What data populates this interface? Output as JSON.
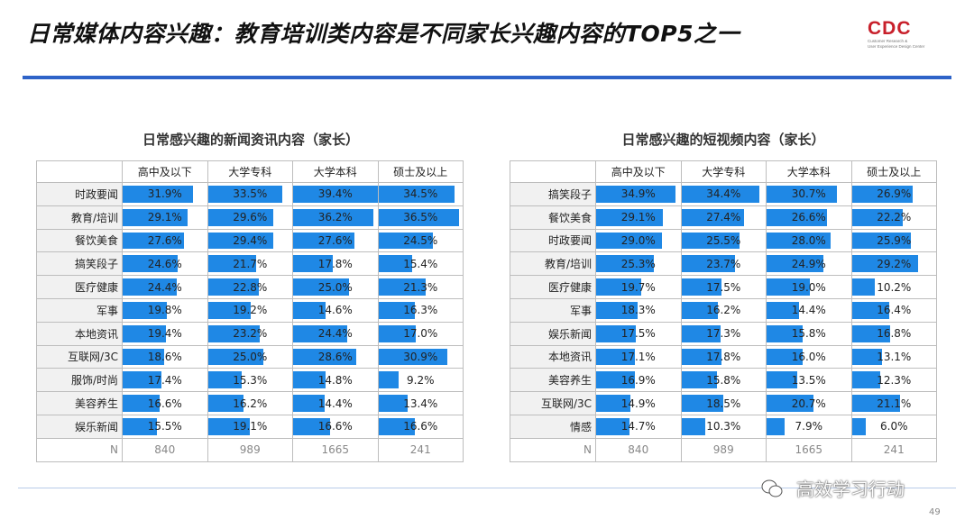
{
  "header": {
    "title": "日常媒体内容兴趣：教育培训类内容是不同家长兴趣内容的TOP5之一",
    "logo_text": "CDC",
    "logo_sub1": "Customer Research &",
    "logo_sub2": "User Experience Design Center"
  },
  "footer": {
    "watermark": "高效学习行动",
    "page_number": "49"
  },
  "chart_data": [
    {
      "type": "table",
      "title": "日常感兴趣的新闻资讯内容（家长）",
      "columns": [
        "高中及以下",
        "大学专科",
        "大学本科",
        "硕士及以上"
      ],
      "rows": [
        {
          "label": "时政要闻",
          "values": [
            31.9,
            33.5,
            39.4,
            34.5
          ]
        },
        {
          "label": "教育/培训",
          "values": [
            29.1,
            29.6,
            36.2,
            36.5
          ]
        },
        {
          "label": "餐饮美食",
          "values": [
            27.6,
            29.4,
            27.6,
            24.5
          ]
        },
        {
          "label": "搞笑段子",
          "values": [
            24.6,
            21.7,
            17.8,
            15.4
          ]
        },
        {
          "label": "医疗健康",
          "values": [
            24.4,
            22.8,
            25.0,
            21.3
          ]
        },
        {
          "label": "军事",
          "values": [
            19.8,
            19.2,
            14.6,
            16.3
          ]
        },
        {
          "label": "本地资讯",
          "values": [
            19.4,
            23.2,
            24.4,
            17.0
          ]
        },
        {
          "label": "互联网/3C",
          "values": [
            18.6,
            25.0,
            28.6,
            30.9
          ]
        },
        {
          "label": "服饰/时尚",
          "values": [
            17.4,
            15.3,
            14.8,
            9.2
          ]
        },
        {
          "label": "美容养生",
          "values": [
            16.6,
            16.2,
            14.4,
            13.4
          ]
        },
        {
          "label": "娱乐新闻",
          "values": [
            15.5,
            19.1,
            16.6,
            16.6
          ]
        }
      ],
      "n_label": "N",
      "n_values": [
        "840",
        "989",
        "1665",
        "241"
      ],
      "bar_color": "#1f88e5",
      "bar_max": 38
    },
    {
      "type": "table",
      "title": "日常感兴趣的短视频内容（家长）",
      "columns": [
        "高中及以下",
        "大学专科",
        "大学本科",
        "硕士及以上"
      ],
      "rows": [
        {
          "label": "搞笑段子",
          "values": [
            34.9,
            34.4,
            30.7,
            26.9
          ]
        },
        {
          "label": "餐饮美食",
          "values": [
            29.1,
            27.4,
            26.6,
            22.2
          ]
        },
        {
          "label": "时政要闻",
          "values": [
            29.0,
            25.5,
            28.0,
            25.9
          ]
        },
        {
          "label": "教育/培训",
          "values": [
            25.3,
            23.7,
            24.9,
            29.2
          ]
        },
        {
          "label": "医疗健康",
          "values": [
            19.7,
            17.5,
            19.0,
            10.2
          ]
        },
        {
          "label": "军事",
          "values": [
            18.3,
            16.2,
            14.4,
            16.4
          ]
        },
        {
          "label": "娱乐新闻",
          "values": [
            17.5,
            17.3,
            15.8,
            16.8
          ]
        },
        {
          "label": "本地资讯",
          "values": [
            17.1,
            17.8,
            16.0,
            13.1
          ]
        },
        {
          "label": "美容养生",
          "values": [
            16.9,
            15.8,
            13.5,
            12.3
          ]
        },
        {
          "label": "互联网/3C",
          "values": [
            14.9,
            18.5,
            20.7,
            21.1
          ]
        },
        {
          "label": "情感",
          "values": [
            14.7,
            10.3,
            7.9,
            6.0
          ]
        }
      ],
      "n_label": "N",
      "n_values": [
        "840",
        "989",
        "1665",
        "241"
      ],
      "bar_color": "#1f88e5",
      "bar_max": 37
    }
  ]
}
